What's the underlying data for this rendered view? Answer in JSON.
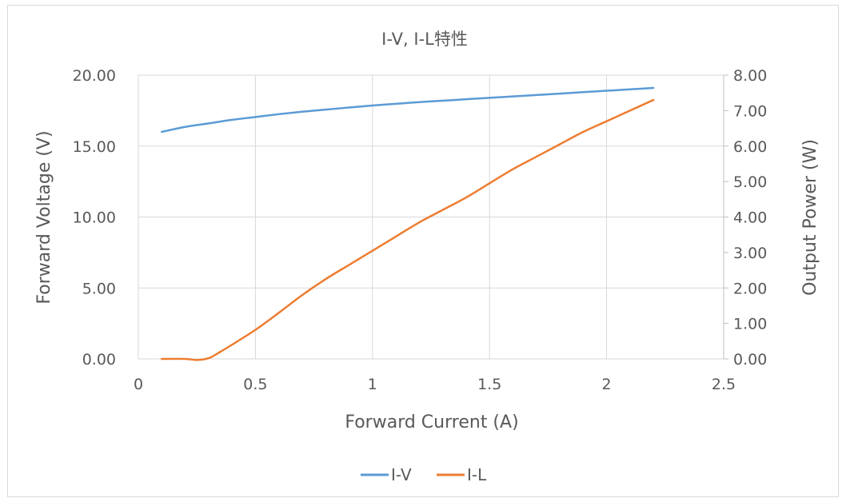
{
  "chart_data": {
    "type": "line",
    "title": "I-V, I-L特性",
    "xlabel": "Forward Current (A)",
    "ylabel": "Forward Voltage (V)",
    "y2label": "Output Power (W)",
    "xlim": [
      0,
      2.5
    ],
    "ylim": [
      0,
      20
    ],
    "y2lim": [
      0,
      8
    ],
    "x_ticks": [
      "0",
      "0.5",
      "1",
      "1.5",
      "2",
      "2.5"
    ],
    "y_ticks": [
      "0.00",
      "5.00",
      "10.00",
      "15.00",
      "20.00"
    ],
    "y2_ticks": [
      "0.00",
      "1.00",
      "2.00",
      "3.00",
      "4.00",
      "5.00",
      "6.00",
      "7.00",
      "8.00"
    ],
    "grid": true,
    "legend": "bottom",
    "series": [
      {
        "name": "I-V",
        "axis": "left",
        "color": "#5b9bd5",
        "x": [
          0.1,
          0.2,
          0.3,
          0.4,
          0.5,
          0.6,
          0.7,
          0.8,
          0.9,
          1.0,
          1.1,
          1.2,
          1.3,
          1.4,
          1.5,
          1.6,
          1.7,
          1.8,
          1.9,
          2.0,
          2.1,
          2.2
        ],
        "values": [
          16.0,
          16.35,
          16.6,
          16.85,
          17.05,
          17.25,
          17.42,
          17.57,
          17.72,
          17.86,
          17.98,
          18.1,
          18.2,
          18.3,
          18.4,
          18.5,
          18.6,
          18.7,
          18.8,
          18.9,
          19.0,
          19.1
        ]
      },
      {
        "name": "I-L",
        "axis": "right",
        "color": "#ed7d31",
        "x": [
          0.1,
          0.2,
          0.25,
          0.3,
          0.35,
          0.4,
          0.5,
          0.6,
          0.7,
          0.8,
          0.9,
          1.0,
          1.1,
          1.2,
          1.3,
          1.4,
          1.5,
          1.6,
          1.7,
          1.8,
          1.9,
          2.0,
          2.1,
          2.2
        ],
        "values": [
          0.0,
          0.0,
          -0.03,
          0.02,
          0.2,
          0.4,
          0.82,
          1.3,
          1.8,
          2.25,
          2.65,
          3.05,
          3.45,
          3.85,
          4.2,
          4.55,
          4.95,
          5.35,
          5.7,
          6.05,
          6.4,
          6.7,
          7.0,
          7.3
        ]
      }
    ]
  }
}
